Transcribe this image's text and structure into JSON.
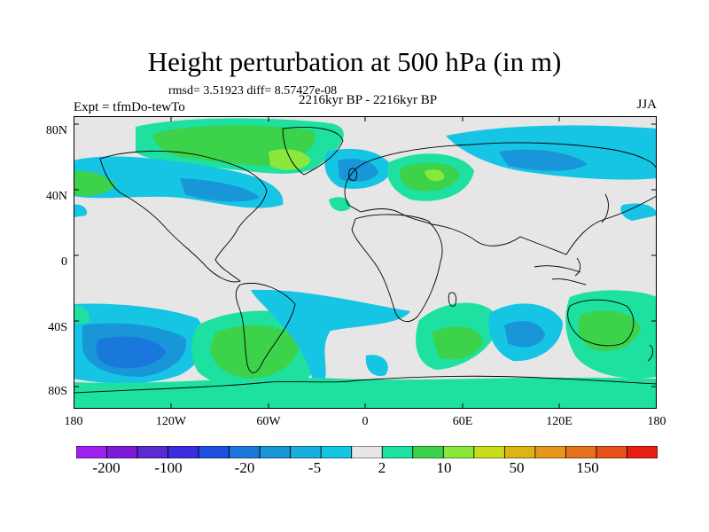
{
  "title": "Height perturbation at 500 hPa (in m)",
  "stats": "rmsd= 3.51923 diff= 8.57427e-08",
  "experiment": "Expt = tfmDo-tewTo",
  "period": "2216kyr BP - 2216kyr BP",
  "season": "JJA",
  "lat_labels": [
    "80N",
    "40N",
    "0",
    "40S",
    "80S"
  ],
  "lon_labels": [
    "180",
    "120W",
    "60W",
    "0",
    "60E",
    "120E",
    "180"
  ],
  "colorbar": {
    "colors": [
      "#a020f0",
      "#7d1bd8",
      "#5b2ad0",
      "#3a2de0",
      "#1e50e0",
      "#1a78dd",
      "#1896d8",
      "#1aaee0",
      "#16c4e4",
      "#e6e6e6",
      "#1ee0a0",
      "#3cd24a",
      "#8ae83c",
      "#c8dc1c",
      "#dcb414",
      "#e6961c",
      "#e6701c",
      "#e8501c",
      "#e61e14"
    ],
    "labels": [
      "-200",
      "-100",
      "-20",
      "-5",
      "2",
      "10",
      "50",
      "150"
    ]
  },
  "field_colors": {
    "background": "#e6e6e6",
    "light_blue": "#16c4e4",
    "mid_blue": "#1896d8",
    "dark_blue": "#1a78dd",
    "green_light": "#1ee0a0",
    "green": "#3cd24a",
    "yellow_green": "#8ae83c"
  }
}
